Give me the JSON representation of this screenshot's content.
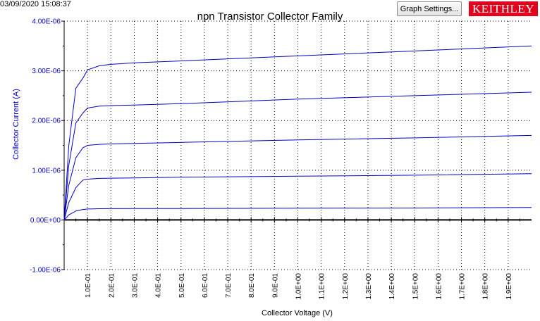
{
  "header": {
    "timestamp": "03/09/2020 15:08:37",
    "graph_settings_label": "Graph Settings...",
    "logo_text": "KEITHLEY"
  },
  "colors": {
    "series": "#0000c8",
    "ylabel": "#0000c8",
    "ytick_labels": "#0000c8",
    "grid": "#000000",
    "logo_bg": "#e3001b"
  },
  "chart_data": {
    "type": "line",
    "title": "npn Transistor Collector Family",
    "xlabel": "Collector Voltage (V)",
    "ylabel": "Collector Current (A)",
    "xlim": [
      0,
      2.0
    ],
    "ylim": [
      -1e-06,
      4e-06
    ],
    "grid": true,
    "x_tick_labels": [
      "1.0E-01",
      "2.0E-01",
      "3.0E-01",
      "4.0E-01",
      "5.0E-01",
      "6.0E-01",
      "7.0E-01",
      "8.0E-01",
      "9.0E-01",
      "1.0E+00",
      "1.1E+00",
      "1.2E+00",
      "1.3E+00",
      "1.4E+00",
      "1.5E+00",
      "1.6E+00",
      "1.7E+00",
      "1.8E+00",
      "1.9E+00"
    ],
    "y_ticks": [
      {
        "value": -1e-06,
        "label": "-1.00E-06"
      },
      {
        "value": 0,
        "label": "0.00E+00"
      },
      {
        "value": 1e-06,
        "label": "1.00E-06"
      },
      {
        "value": 2e-06,
        "label": "2.00E-06"
      },
      {
        "value": 3e-06,
        "label": "3.00E-06"
      },
      {
        "value": 4e-06,
        "label": "4.00E-06"
      }
    ],
    "series": [
      {
        "x": [
          0,
          0.02,
          0.05,
          0.08,
          0.1,
          0.15,
          0.2,
          0.3,
          0.5,
          1.0,
          1.5,
          2.0
        ],
        "y": [
          0,
          1e-07,
          1.8e-07,
          2.1e-07,
          2.2e-07,
          2.25e-07,
          2.27e-07,
          2.28e-07,
          2.3e-07,
          2.35e-07,
          2.4e-07,
          2.5e-07
        ]
      },
      {
        "x": [
          0,
          0.02,
          0.05,
          0.08,
          0.1,
          0.15,
          0.2,
          0.3,
          0.5,
          1.0,
          1.5,
          2.0
        ],
        "y": [
          0,
          3.5e-07,
          6.5e-07,
          8e-07,
          8.2e-07,
          8.35e-07,
          8.4e-07,
          8.45e-07,
          8.6e-07,
          8.8e-07,
          9e-07,
          9.3e-07
        ]
      },
      {
        "x": [
          0,
          0.02,
          0.05,
          0.08,
          0.1,
          0.15,
          0.2,
          0.3,
          0.5,
          1.0,
          1.5,
          2.0
        ],
        "y": [
          0,
          7e-07,
          1.25e-06,
          1.45e-06,
          1.5e-06,
          1.52e-06,
          1.53e-06,
          1.54e-06,
          1.56e-06,
          1.61e-06,
          1.65e-06,
          1.7e-06
        ]
      },
      {
        "x": [
          0,
          0.02,
          0.05,
          0.08,
          0.1,
          0.15,
          0.2,
          0.3,
          0.5,
          1.0,
          1.5,
          2.0
        ],
        "y": [
          0,
          1.1e-06,
          1.95e-06,
          2.15e-06,
          2.25e-06,
          2.29e-06,
          2.3e-06,
          2.31e-06,
          2.34e-06,
          2.43e-06,
          2.5e-06,
          2.57e-06
        ]
      },
      {
        "x": [
          0,
          0.02,
          0.05,
          0.08,
          0.1,
          0.15,
          0.2,
          0.3,
          0.5,
          1.0,
          1.5,
          2.0
        ],
        "y": [
          0,
          1.5e-06,
          2.65e-06,
          2.85e-06,
          3.02e-06,
          3.1e-06,
          3.13e-06,
          3.16e-06,
          3.2e-06,
          3.3e-06,
          3.4e-06,
          3.5e-06
        ]
      }
    ]
  }
}
